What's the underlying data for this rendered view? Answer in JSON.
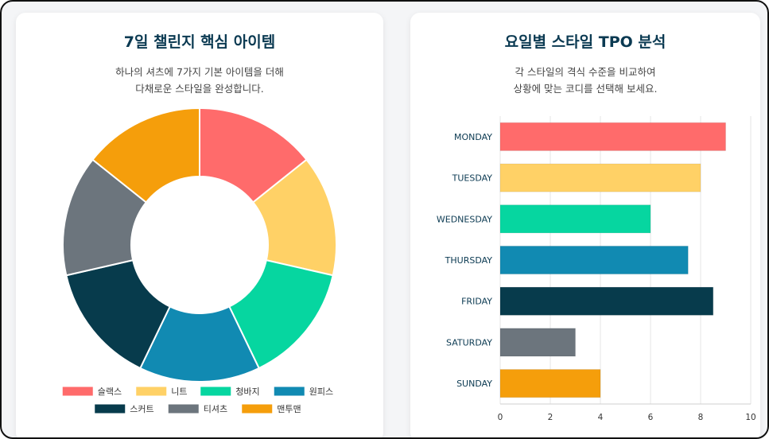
{
  "left_card": {
    "title": "7일 챌린지 핵심 아이템",
    "subtitle_line1": "하나의 셔츠에 7가지 기본 아이템을 더해",
    "subtitle_line2": "다채로운 스타일을 완성합니다."
  },
  "right_card": {
    "title": "요일별 스타일 TPO 분석",
    "subtitle_line1": "각 스타일의 격식 수준을 비교하여",
    "subtitle_line2": "상황에 맞는 코디를 선택해 보세요."
  },
  "chart_data": [
    {
      "type": "pie",
      "donut": true,
      "labels": [
        "슬랙스",
        "니트",
        "청바지",
        "원피스",
        "스커트",
        "티셔츠",
        "맨투맨"
      ],
      "values": [
        1,
        1,
        1,
        1,
        1,
        1,
        1
      ],
      "colors": [
        "#ff6b6b",
        "#ffd166",
        "#06d6a0",
        "#118ab2",
        "#073b4c",
        "#6c757d",
        "#f59e0b"
      ],
      "legend": "bottom"
    },
    {
      "type": "bar",
      "orientation": "horizontal",
      "categories": [
        "MONDAY",
        "TUESDAY",
        "WEDNESDAY",
        "THURSDAY",
        "FRIDAY",
        "SATURDAY",
        "SUNDAY"
      ],
      "values": [
        9,
        8,
        6,
        7.5,
        8.5,
        3,
        4
      ],
      "colors": [
        "#ff6b6b",
        "#ffd166",
        "#06d6a0",
        "#118ab2",
        "#073b4c",
        "#6c757d",
        "#f59e0b"
      ],
      "xlim": [
        0,
        10
      ],
      "xticks": [
        "0",
        "2",
        "4",
        "6",
        "8",
        "10"
      ],
      "grid": true
    }
  ]
}
